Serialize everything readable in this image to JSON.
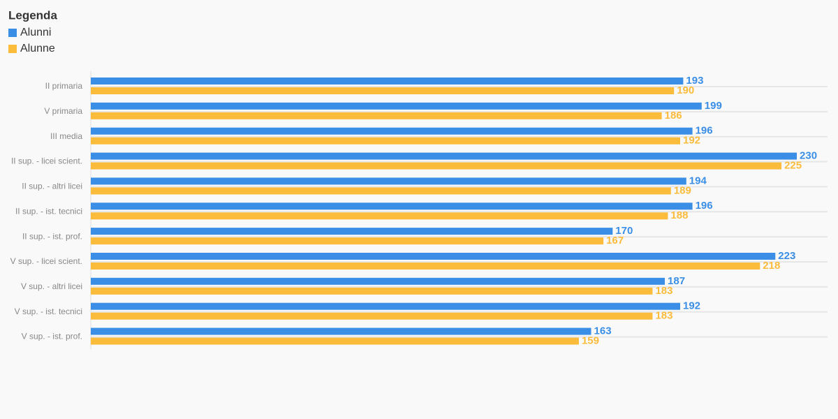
{
  "chart_data": {
    "type": "bar",
    "orientation": "horizontal",
    "legend_title": "Legenda",
    "categories": [
      "II primaria",
      "V primaria",
      "III media",
      "II sup. - licei scient.",
      "II sup. - altri licei",
      "II sup. - ist. tecnici",
      "II sup. - ist. prof.",
      "V sup. - licei scient.",
      "V sup. - altri licei",
      "V sup. - ist. tecnici",
      "V sup. - ist. prof."
    ],
    "series": [
      {
        "name": "Alunni",
        "color": "#3a8ee6",
        "values": [
          193,
          199,
          196,
          230,
          194,
          196,
          170,
          223,
          187,
          192,
          163
        ]
      },
      {
        "name": "Alunne",
        "color": "#fbbb3b",
        "values": [
          190,
          186,
          192,
          225,
          189,
          188,
          167,
          218,
          183,
          183,
          159
        ]
      }
    ],
    "xlim": [
      0,
      240
    ],
    "grid": true,
    "legend_position": "top-left"
  }
}
